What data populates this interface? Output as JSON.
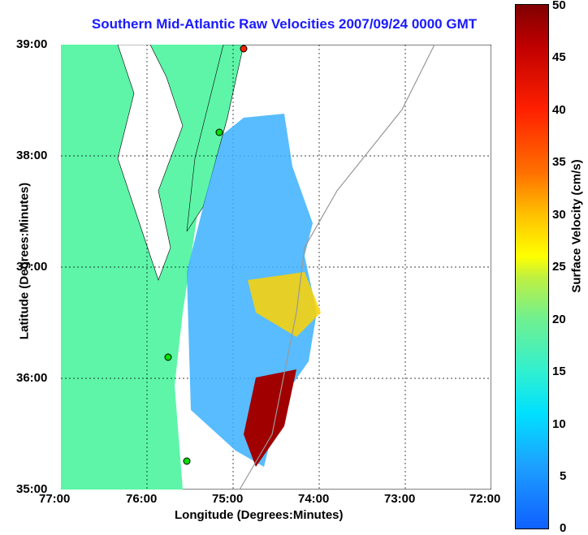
{
  "title": "Southern Mid-Atlantic Raw Velocities 2007/09/24 0000 GMT",
  "xlabel": "Longitude (Degrees:Minutes)",
  "ylabel": "Latitude (Degrees:Minutes)",
  "colorbar_label": "Surface Velocity (cm/s)",
  "x_ticks": [
    "77:00",
    "76:00",
    "75:00",
    "74:00",
    "73:00",
    "72:00"
  ],
  "y_ticks": [
    "39:00",
    "38:00",
    "37:00",
    "36:00",
    "35:00"
  ],
  "colorbar_ticks": [
    "50",
    "45",
    "40",
    "35",
    "30",
    "25",
    "20",
    "15",
    "10",
    "5",
    "0"
  ],
  "colors": {
    "land": "#5ef5a8",
    "title": "#1a1aff"
  }
}
